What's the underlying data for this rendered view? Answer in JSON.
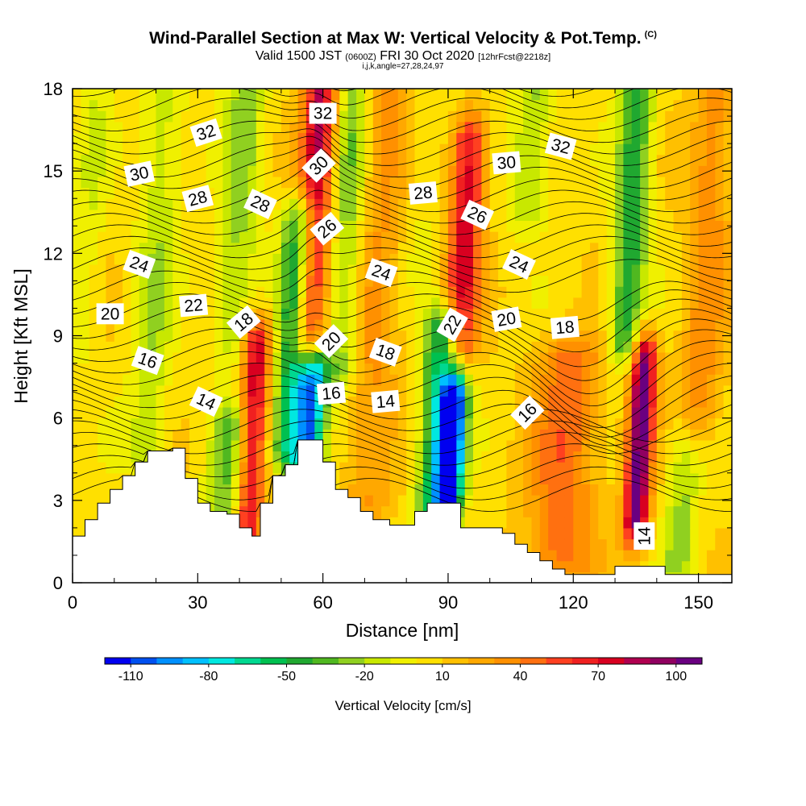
{
  "header": {
    "title": "Wind-Parallel Section at Max W: Vertical Velocity & Pot.Temp.",
    "copyright": "(C)",
    "valid_prefix": "Valid 1500 JST",
    "valid_utc": "(0600Z)",
    "valid_date": "FRI 30 Oct 2020",
    "forecast": "[12hrFcst@2218z]",
    "indices": "i,j,k,angle=27,28,24,97"
  },
  "chart_data": {
    "type": "heatmap",
    "title": "Wind-Parallel Section at Max W: Vertical Velocity & Pot.Temp.",
    "xlabel": "Distance [nm]",
    "ylabel": "Height [Kft MSL]",
    "xlim": [
      0,
      158
    ],
    "ylim": [
      0,
      18
    ],
    "x_ticks": [
      0,
      30,
      60,
      90,
      120,
      150
    ],
    "y_ticks": [
      0,
      3,
      6,
      9,
      12,
      15,
      18
    ],
    "colorbar": {
      "title": "Vertical Velocity [cm/s]",
      "tick_labels": [
        "-110",
        "-80",
        "-50",
        "-20",
        "10",
        "40",
        "70",
        "100"
      ],
      "colors": [
        "#0000f0",
        "#0050f0",
        "#0090ff",
        "#00c0ff",
        "#00e8e0",
        "#00d890",
        "#00c050",
        "#20a830",
        "#50b820",
        "#90d020",
        "#c8e800",
        "#f0f000",
        "#ffe000",
        "#ffc000",
        "#ffa800",
        "#ff9000",
        "#ff7010",
        "#ff4020",
        "#f02020",
        "#d80020",
        "#b00050",
        "#900060",
        "#6a0080"
      ]
    },
    "terrain": [
      [
        0,
        1.7
      ],
      [
        3,
        1.7
      ],
      [
        3,
        2.3
      ],
      [
        6,
        2.3
      ],
      [
        6,
        2.9
      ],
      [
        9,
        2.9
      ],
      [
        9,
        3.4
      ],
      [
        12,
        3.4
      ],
      [
        12,
        3.9
      ],
      [
        15,
        3.9
      ],
      [
        15,
        4.4
      ],
      [
        18,
        4.4
      ],
      [
        18,
        4.8
      ],
      [
        24,
        4.8
      ],
      [
        24,
        4.9
      ],
      [
        27,
        4.9
      ],
      [
        27,
        3.8
      ],
      [
        30,
        3.8
      ],
      [
        30,
        2.9
      ],
      [
        33,
        2.9
      ],
      [
        33,
        2.6
      ],
      [
        37,
        2.6
      ],
      [
        37,
        2.5
      ],
      [
        40,
        2.5
      ],
      [
        40,
        2.0
      ],
      [
        43,
        2.0
      ],
      [
        43,
        1.7
      ],
      [
        45,
        1.7
      ],
      [
        45,
        2.9
      ],
      [
        48,
        2.9
      ],
      [
        48,
        3.9
      ],
      [
        51,
        3.9
      ],
      [
        51,
        4.3
      ],
      [
        54,
        4.3
      ],
      [
        54,
        5.2
      ],
      [
        60,
        5.2
      ],
      [
        60,
        4.4
      ],
      [
        63,
        4.4
      ],
      [
        63,
        3.4
      ],
      [
        66,
        3.4
      ],
      [
        66,
        3.1
      ],
      [
        69,
        3.1
      ],
      [
        69,
        2.6
      ],
      [
        72,
        2.6
      ],
      [
        72,
        2.3
      ],
      [
        76,
        2.3
      ],
      [
        76,
        2.1
      ],
      [
        82,
        2.1
      ],
      [
        82,
        2.6
      ],
      [
        85,
        2.6
      ],
      [
        85,
        2.9
      ],
      [
        93,
        2.9
      ],
      [
        93,
        2.0
      ],
      [
        103,
        2.0
      ],
      [
        103,
        1.8
      ],
      [
        106,
        1.8
      ],
      [
        106,
        1.4
      ],
      [
        109,
        1.4
      ],
      [
        109,
        1.1
      ],
      [
        112,
        1.1
      ],
      [
        112,
        0.8
      ],
      [
        115,
        0.8
      ],
      [
        115,
        0.5
      ],
      [
        118,
        0.5
      ],
      [
        118,
        0.3
      ],
      [
        130,
        0.3
      ],
      [
        130,
        0.6
      ],
      [
        142,
        0.6
      ],
      [
        142,
        0.3
      ],
      [
        158,
        0.3
      ]
    ],
    "vertical_velocity_features": [
      {
        "x": 4,
        "y0": 9.0,
        "y1": 18.0,
        "w": 4,
        "v": -15
      },
      {
        "x": 20,
        "y0": 5.0,
        "y1": 18.0,
        "w": 5,
        "v": -25
      },
      {
        "x": 40,
        "y0": 9.0,
        "y1": 18.0,
        "w": 5,
        "v": -30
      },
      {
        "x": 38,
        "y0": 2.5,
        "y1": 5.5,
        "w": 5,
        "v": -40
      },
      {
        "x": 43,
        "y0": 1.8,
        "y1": 8.5,
        "w": 3.5,
        "v": 75
      },
      {
        "x": 53,
        "y0": 5.0,
        "y1": 13.0,
        "w": 4,
        "v": -70
      },
      {
        "x": 57,
        "y0": 4.0,
        "y1": 7.5,
        "w": 3.5,
        "v": -100
      },
      {
        "x": 58,
        "y0": 9.0,
        "y1": 18.0,
        "w": 4,
        "v": 75
      },
      {
        "x": 66,
        "y0": 8.0,
        "y1": 18.0,
        "w": 4,
        "v": -35
      },
      {
        "x": 73,
        "y0": 3.0,
        "y1": 18.0,
        "w": 6,
        "v": 25
      },
      {
        "x": 88,
        "y0": 3.0,
        "y1": 9.0,
        "w": 4.5,
        "v": -75
      },
      {
        "x": 91,
        "y0": 3.5,
        "y1": 6.5,
        "w": 3,
        "v": -110
      },
      {
        "x": 94,
        "y0": 9.0,
        "y1": 16.0,
        "w": 4,
        "v": 70
      },
      {
        "x": 84,
        "y0": 12.0,
        "y1": 18.0,
        "w": 5,
        "v": -10
      },
      {
        "x": 110,
        "y0": 14.0,
        "y1": 18.0,
        "w": 5,
        "v": -30
      },
      {
        "x": 118,
        "y0": 1.0,
        "y1": 8.0,
        "w": 8,
        "v": 40
      },
      {
        "x": 134,
        "y0": 9.0,
        "y1": 18.0,
        "w": 4,
        "v": -55
      },
      {
        "x": 136,
        "y0": 2.5,
        "y1": 8.0,
        "w": 3,
        "v": 100
      },
      {
        "x": 146,
        "y0": 1.0,
        "y1": 5.0,
        "w": 4,
        "v": -30
      },
      {
        "x": 152,
        "y0": 6.0,
        "y1": 18.0,
        "w": 5,
        "v": 30
      }
    ],
    "contour_labels": [
      {
        "text": "32",
        "x": 32,
        "y": 16.4,
        "rot": -18
      },
      {
        "text": "30",
        "x": 16,
        "y": 14.9,
        "rot": -12
      },
      {
        "text": "28",
        "x": 30,
        "y": 14.0,
        "rot": -15
      },
      {
        "text": "28",
        "x": 45,
        "y": 13.8,
        "rot": 25
      },
      {
        "text": "24",
        "x": 16,
        "y": 11.6,
        "rot": 20
      },
      {
        "text": "22",
        "x": 29,
        "y": 10.1,
        "rot": -5
      },
      {
        "text": "20",
        "x": 9,
        "y": 9.8,
        "rot": 0
      },
      {
        "text": "18",
        "x": 41,
        "y": 9.5,
        "rot": -40
      },
      {
        "text": "16",
        "x": 18,
        "y": 8.1,
        "rot": 20
      },
      {
        "text": "14",
        "x": 32,
        "y": 6.6,
        "rot": 25
      },
      {
        "text": "32",
        "x": 60,
        "y": 17.1,
        "rot": 0
      },
      {
        "text": "30",
        "x": 59,
        "y": 15.2,
        "rot": -45
      },
      {
        "text": "26",
        "x": 61,
        "y": 12.9,
        "rot": -40
      },
      {
        "text": "24",
        "x": 74,
        "y": 11.3,
        "rot": 20
      },
      {
        "text": "20",
        "x": 62,
        "y": 8.8,
        "rot": -45
      },
      {
        "text": "18",
        "x": 75,
        "y": 8.4,
        "rot": 20
      },
      {
        "text": "16",
        "x": 62,
        "y": 6.9,
        "rot": -5
      },
      {
        "text": "14",
        "x": 75,
        "y": 6.6,
        "rot": -5
      },
      {
        "text": "28",
        "x": 84,
        "y": 14.2,
        "rot": -5
      },
      {
        "text": "26",
        "x": 97,
        "y": 13.4,
        "rot": 25
      },
      {
        "text": "22",
        "x": 91,
        "y": 9.4,
        "rot": -60
      },
      {
        "text": "30",
        "x": 104,
        "y": 15.3,
        "rot": -5
      },
      {
        "text": "32",
        "x": 117,
        "y": 15.9,
        "rot": 15
      },
      {
        "text": "24",
        "x": 107,
        "y": 11.6,
        "rot": 25
      },
      {
        "text": "20",
        "x": 104,
        "y": 9.6,
        "rot": -10
      },
      {
        "text": "18",
        "x": 118,
        "y": 9.3,
        "rot": -5
      },
      {
        "text": "16",
        "x": 109,
        "y": 6.2,
        "rot": -45
      },
      {
        "text": "14",
        "x": 137,
        "y": 1.7,
        "rot": -90
      }
    ]
  }
}
